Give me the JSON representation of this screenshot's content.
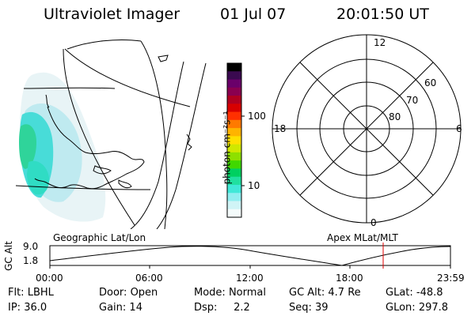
{
  "header": {
    "instrument": "Ultraviolet Imager",
    "date": "01 Jul 07",
    "time": "20:01:50 UT"
  },
  "geo_map": {
    "label": "Geographic Lat/Lon"
  },
  "apex_map": {
    "label": "Apex MLat/MLT",
    "mlt_labels": {
      "top": "12",
      "left": "18",
      "right": "6",
      "bottom": "0"
    },
    "lat_labels": [
      "60",
      "70",
      "80"
    ]
  },
  "colorbar": {
    "unit_label": "photon cm⁻²s⁻¹",
    "ticks": [
      "100",
      "10"
    ],
    "colors": [
      "#000000",
      "#3a0a50",
      "#6a006a",
      "#8a0050",
      "#b00020",
      "#d80000",
      "#ff3000",
      "#ff7a00",
      "#ffb400",
      "#ffe000",
      "#d0e800",
      "#8ee000",
      "#40d800",
      "#00d060",
      "#20e0a0",
      "#40e8d8",
      "#90eef0",
      "#d0f4f6",
      "#f4fbfb"
    ]
  },
  "altitude_plot": {
    "ylabel": "GC Alt",
    "y_ticks": [
      "9.0",
      "1.8"
    ],
    "x_ticks": [
      "00:00",
      "06:00",
      "12:00",
      "18:00",
      "23:59"
    ]
  },
  "status": {
    "row1": [
      {
        "label": "Flt:",
        "value": "LBHL"
      },
      {
        "label": "Door:",
        "value": "Open"
      },
      {
        "label": "Mode:",
        "value": "Normal"
      },
      {
        "label": "GC Alt:",
        "value": "4.7 Re"
      },
      {
        "label": "GLat:",
        "value": "-48.8"
      }
    ],
    "row2": [
      {
        "label": "IP:",
        "value": "36.0"
      },
      {
        "label": "Gain:",
        "value": "14"
      },
      {
        "label": "Dsp:",
        "value": "2.2"
      },
      {
        "label": "Seq:",
        "value": "39"
      },
      {
        "label": "GLon:",
        "value": "297.8"
      }
    ]
  }
}
